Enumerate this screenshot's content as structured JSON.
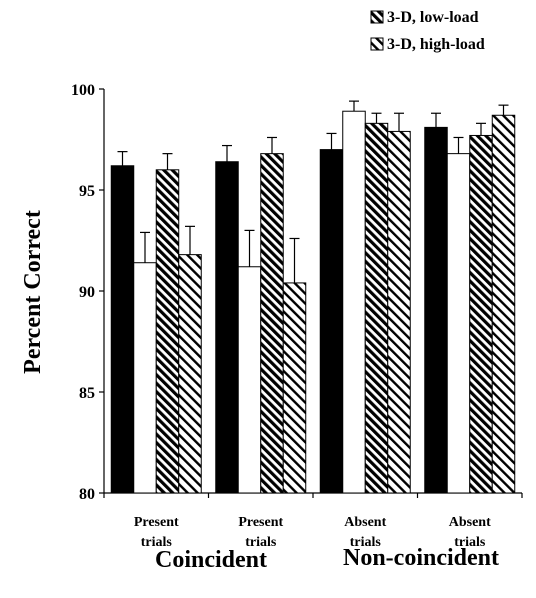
{
  "chart_data": {
    "type": "bar",
    "ylabel": "Percent Correct",
    "ylim": [
      80,
      100
    ],
    "yticks": [
      80,
      85,
      90,
      95,
      100
    ],
    "categories": [
      "Present\ntrials",
      "Present\ntrials",
      "Absent\ntrials",
      "Absent\ntrials"
    ],
    "groups": [
      "Coincident",
      "Non-coincident"
    ],
    "legend_position": "top-right",
    "legend_visible": [
      "3-D, low-load",
      "3-D, high-load"
    ],
    "series": [
      {
        "name": "",
        "fill": "solid-black",
        "values": [
          96.2,
          96.4,
          97.0,
          98.1
        ],
        "errors": [
          0.7,
          0.8,
          0.8,
          0.7
        ]
      },
      {
        "name": "",
        "fill": "white",
        "values": [
          91.4,
          91.2,
          98.9,
          96.8
        ],
        "errors": [
          1.5,
          1.8,
          0.5,
          0.8
        ]
      },
      {
        "name": "3-D, low-load",
        "fill": "dense-diagonal",
        "values": [
          96.0,
          96.8,
          98.3,
          97.7
        ],
        "errors": [
          0.8,
          0.8,
          0.5,
          0.6
        ]
      },
      {
        "name": "3-D, high-load",
        "fill": "light-diagonal",
        "values": [
          91.8,
          90.4,
          97.9,
          98.7
        ],
        "errors": [
          1.4,
          2.2,
          0.9,
          0.5
        ]
      }
    ]
  },
  "colors": {
    "ink": "#000000",
    "background": "#ffffff"
  }
}
